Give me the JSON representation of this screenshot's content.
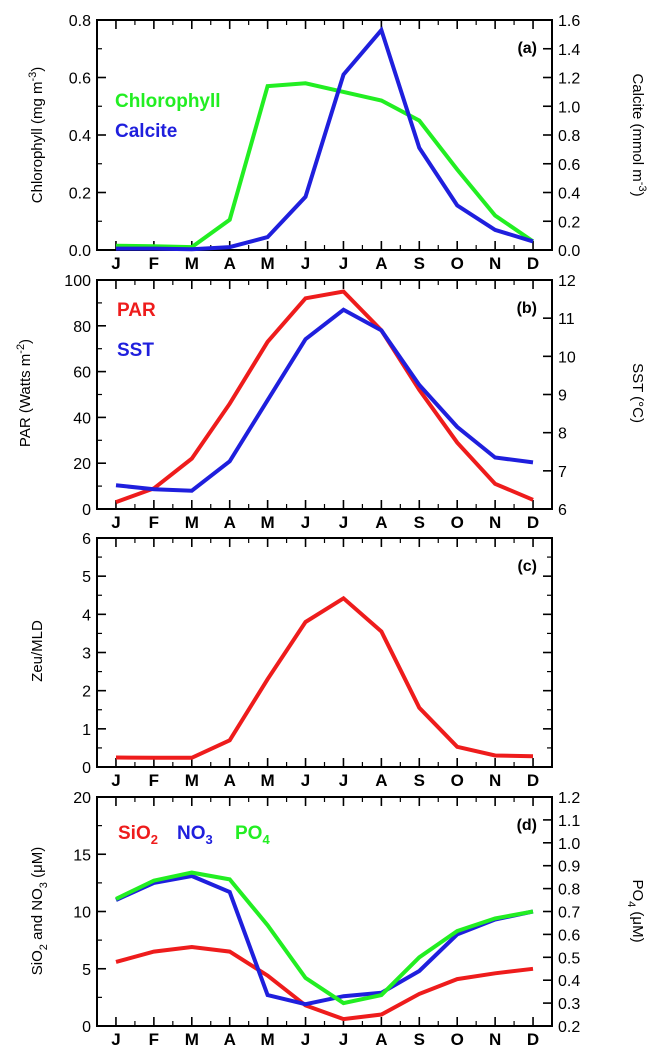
{
  "figure": {
    "months": [
      "J",
      "F",
      "M",
      "A",
      "M",
      "J",
      "J",
      "A",
      "S",
      "O",
      "N",
      "D"
    ]
  },
  "chart_data": [
    {
      "type": "line",
      "panel_label": "(a)",
      "categories": [
        "J",
        "F",
        "M",
        "A",
        "M",
        "J",
        "J",
        "A",
        "S",
        "O",
        "N",
        "D"
      ],
      "ylabel": "Chlorophyll (mg m",
      "ylabel_sup": "-3",
      "ylabel_end": ")",
      "y2label": "Calcite (mmol m",
      "y2label_sup": "-3",
      "y2label_end": ")",
      "ylim": [
        0,
        0.8
      ],
      "yticks": [
        "0.0",
        "0.2",
        "0.4",
        "0.6",
        "0.8"
      ],
      "y2lim": [
        0,
        1.6
      ],
      "y2ticks": [
        "0.0",
        "0.2",
        "0.4",
        "0.6",
        "0.8",
        "1.0",
        "1.2",
        "1.4",
        "1.6"
      ],
      "series": [
        {
          "name": "Chlorophyll",
          "color": "#22ee22",
          "axis": "left",
          "values": [
            0.015,
            0.013,
            0.01,
            0.105,
            0.57,
            0.58,
            0.55,
            0.52,
            0.45,
            0.28,
            0.12,
            0.03
          ]
        },
        {
          "name": "Calcite",
          "color": "#1f1fdd",
          "axis": "right",
          "values": [
            0.01,
            0.01,
            0.005,
            0.02,
            0.09,
            0.37,
            1.22,
            1.53,
            0.71,
            0.31,
            0.14,
            0.06
          ]
        }
      ]
    },
    {
      "type": "line",
      "panel_label": "(b)",
      "categories": [
        "J",
        "F",
        "M",
        "A",
        "M",
        "J",
        "J",
        "A",
        "S",
        "O",
        "N",
        "D"
      ],
      "ylabel": "PAR (Watts m",
      "ylabel_sup": "-2",
      "ylabel_end": ")",
      "y2label": "SST (°C)",
      "y2label_sup": "",
      "y2label_end": "",
      "ylim": [
        0,
        100
      ],
      "yticks": [
        "0",
        "20",
        "40",
        "60",
        "80",
        "100"
      ],
      "y2lim": [
        6,
        12
      ],
      "y2ticks": [
        "6",
        "7",
        "8",
        "9",
        "10",
        "11",
        "12"
      ],
      "series": [
        {
          "name": "PAR",
          "color": "#ee1c1c",
          "axis": "left",
          "values": [
            3,
            9,
            22,
            46,
            73,
            92,
            95,
            78,
            52,
            29,
            11,
            4
          ]
        },
        {
          "name": "SST",
          "color": "#1f1fdd",
          "axis": "right",
          "values": [
            6.62,
            6.52,
            6.48,
            7.25,
            8.85,
            10.45,
            11.22,
            10.68,
            9.25,
            8.15,
            7.35,
            7.22
          ]
        }
      ]
    },
    {
      "type": "line",
      "panel_label": "(c)",
      "categories": [
        "J",
        "F",
        "M",
        "A",
        "M",
        "J",
        "J",
        "A",
        "S",
        "O",
        "N",
        "D"
      ],
      "ylabel": "Zeu/MLD",
      "ylim": [
        0,
        6
      ],
      "yticks": [
        "0",
        "1",
        "2",
        "3",
        "4",
        "5",
        "6"
      ],
      "series": [
        {
          "name": "",
          "color": "#ee1c1c",
          "axis": "left",
          "values": [
            0.25,
            0.24,
            0.24,
            0.7,
            2.3,
            3.8,
            4.42,
            3.55,
            1.55,
            0.53,
            0.3,
            0.28
          ]
        }
      ]
    },
    {
      "type": "line",
      "panel_label": "(d)",
      "categories": [
        "J",
        "F",
        "M",
        "A",
        "M",
        "J",
        "J",
        "A",
        "S",
        "O",
        "N",
        "D"
      ],
      "ylabel": "SiO",
      "ylabel_sub": "2",
      "ylabel_mid": " and NO",
      "ylabel_sub2": "3",
      "ylabel_end": " (μM)",
      "y2label": "PO",
      "y2label_sub": "4",
      "y2label_end": " (μM)",
      "ylim": [
        0,
        20
      ],
      "yticks": [
        "0",
        "5",
        "10",
        "15",
        "20"
      ],
      "y2lim": [
        0.2,
        1.2
      ],
      "y2ticks": [
        "0.2",
        "0.3",
        "0.4",
        "0.5",
        "0.6",
        "0.7",
        "0.8",
        "0.9",
        "1.0",
        "1.1",
        "1.2"
      ],
      "legend": [
        {
          "text": "SiO",
          "sub": "2",
          "color": "#ee1c1c"
        },
        {
          "text": "NO",
          "sub": "3",
          "color": "#1f1fdd"
        },
        {
          "text": "PO",
          "sub": "4",
          "color": "#22ee22"
        }
      ],
      "series": [
        {
          "name": "SiO2",
          "color": "#ee1c1c",
          "axis": "left",
          "values": [
            5.6,
            6.5,
            6.9,
            6.5,
            4.4,
            1.8,
            0.6,
            1.0,
            2.8,
            4.1,
            4.6,
            5.0
          ]
        },
        {
          "name": "NO3",
          "color": "#1f1fdd",
          "axis": "left",
          "values": [
            11.0,
            12.5,
            13.1,
            11.7,
            2.7,
            1.9,
            2.6,
            2.9,
            4.8,
            8.0,
            9.3,
            10.0
          ]
        },
        {
          "name": "PO4",
          "color": "#22ee22",
          "axis": "right",
          "values": [
            0.755,
            0.835,
            0.87,
            0.84,
            0.64,
            0.41,
            0.3,
            0.335,
            0.5,
            0.615,
            0.67,
            0.7
          ]
        }
      ]
    }
  ]
}
